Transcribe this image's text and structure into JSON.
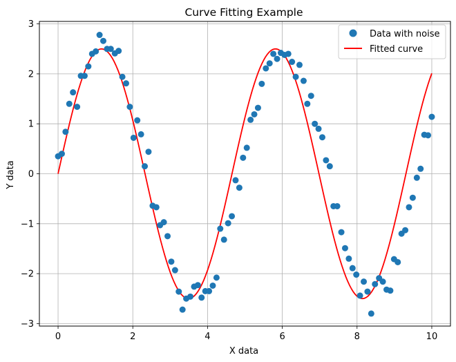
{
  "chart_data": {
    "type": "scatter",
    "title": "Curve Fitting Example",
    "xlabel": "X data",
    "ylabel": "Y data",
    "xlim": [
      -0.5,
      10.5
    ],
    "ylim": [
      -3.05,
      3.05
    ],
    "xticks": [
      0,
      2,
      4,
      6,
      8,
      10
    ],
    "xtick_labels": [
      "0",
      "2",
      "4",
      "6",
      "8",
      "10"
    ],
    "yticks": [
      -3,
      -2,
      -1,
      0,
      1,
      2,
      3
    ],
    "ytick_labels": [
      "−3",
      "−2",
      "−1",
      "0",
      "1",
      "2",
      "3"
    ],
    "grid": true,
    "legend_position": "top-right",
    "series": [
      {
        "name": "Data with noise",
        "kind": "scatter",
        "color": "#1f77b4",
        "points": [
          [
            0.0,
            0.35
          ],
          [
            0.1,
            0.4
          ],
          [
            0.2,
            0.84
          ],
          [
            0.3,
            1.4
          ],
          [
            0.4,
            1.63
          ],
          [
            0.51,
            1.34
          ],
          [
            0.61,
            1.96
          ],
          [
            0.71,
            1.96
          ],
          [
            0.81,
            2.15
          ],
          [
            0.91,
            2.4
          ],
          [
            1.01,
            2.45
          ],
          [
            1.11,
            2.78
          ],
          [
            1.21,
            2.66
          ],
          [
            1.31,
            2.5
          ],
          [
            1.41,
            2.5
          ],
          [
            1.52,
            2.41
          ],
          [
            1.62,
            2.46
          ],
          [
            1.72,
            1.94
          ],
          [
            1.82,
            1.81
          ],
          [
            1.92,
            1.34
          ],
          [
            2.02,
            0.72
          ],
          [
            2.12,
            1.07
          ],
          [
            2.22,
            0.79
          ],
          [
            2.32,
            0.15
          ],
          [
            2.42,
            0.44
          ],
          [
            2.53,
            -0.64
          ],
          [
            2.63,
            -0.67
          ],
          [
            2.73,
            -1.03
          ],
          [
            2.83,
            -0.97
          ],
          [
            2.93,
            -1.25
          ],
          [
            3.03,
            -1.76
          ],
          [
            3.13,
            -1.93
          ],
          [
            3.23,
            -2.36
          ],
          [
            3.33,
            -2.72
          ],
          [
            3.43,
            -2.5
          ],
          [
            3.54,
            -2.46
          ],
          [
            3.64,
            -2.26
          ],
          [
            3.74,
            -2.23
          ],
          [
            3.84,
            -2.48
          ],
          [
            3.94,
            -2.35
          ],
          [
            4.04,
            -2.35
          ],
          [
            4.14,
            -2.24
          ],
          [
            4.24,
            -2.08
          ],
          [
            4.34,
            -1.1
          ],
          [
            4.44,
            -1.32
          ],
          [
            4.55,
            -0.99
          ],
          [
            4.65,
            -0.85
          ],
          [
            4.75,
            -0.13
          ],
          [
            4.85,
            -0.28
          ],
          [
            4.95,
            0.32
          ],
          [
            5.05,
            0.52
          ],
          [
            5.15,
            1.08
          ],
          [
            5.25,
            1.19
          ],
          [
            5.35,
            1.32
          ],
          [
            5.45,
            1.8
          ],
          [
            5.56,
            2.11
          ],
          [
            5.66,
            2.21
          ],
          [
            5.76,
            2.4
          ],
          [
            5.86,
            2.3
          ],
          [
            5.96,
            2.42
          ],
          [
            6.06,
            2.38
          ],
          [
            6.16,
            2.4
          ],
          [
            6.26,
            2.24
          ],
          [
            6.36,
            1.94
          ],
          [
            6.46,
            2.18
          ],
          [
            6.57,
            1.86
          ],
          [
            6.67,
            1.4
          ],
          [
            6.77,
            1.56
          ],
          [
            6.87,
            1.0
          ],
          [
            6.97,
            0.9
          ],
          [
            7.07,
            0.73
          ],
          [
            7.17,
            0.27
          ],
          [
            7.27,
            0.15
          ],
          [
            7.37,
            -0.65
          ],
          [
            7.47,
            -0.65
          ],
          [
            7.58,
            -1.17
          ],
          [
            7.68,
            -1.49
          ],
          [
            7.78,
            -1.7
          ],
          [
            7.88,
            -1.89
          ],
          [
            7.98,
            -2.02
          ],
          [
            8.08,
            -2.44
          ],
          [
            8.18,
            -2.16
          ],
          [
            8.28,
            -2.36
          ],
          [
            8.38,
            -2.8
          ],
          [
            8.48,
            -2.21
          ],
          [
            8.59,
            -2.09
          ],
          [
            8.69,
            -2.16
          ],
          [
            8.79,
            -2.32
          ],
          [
            8.89,
            -2.34
          ],
          [
            8.99,
            -1.71
          ],
          [
            9.09,
            -1.77
          ],
          [
            9.19,
            -1.2
          ],
          [
            9.29,
            -1.13
          ],
          [
            9.39,
            -0.67
          ],
          [
            9.49,
            -0.48
          ],
          [
            9.6,
            -0.08
          ],
          [
            9.7,
            0.1
          ],
          [
            9.8,
            0.78
          ],
          [
            9.9,
            0.77
          ],
          [
            10.0,
            1.14
          ]
        ]
      },
      {
        "name": "Fitted curve",
        "kind": "line",
        "color": "#ff0000",
        "model": "y = 2.5 * sin(1.35 * x)",
        "x_range": [
          0,
          10
        ],
        "samples": 201
      }
    ]
  }
}
